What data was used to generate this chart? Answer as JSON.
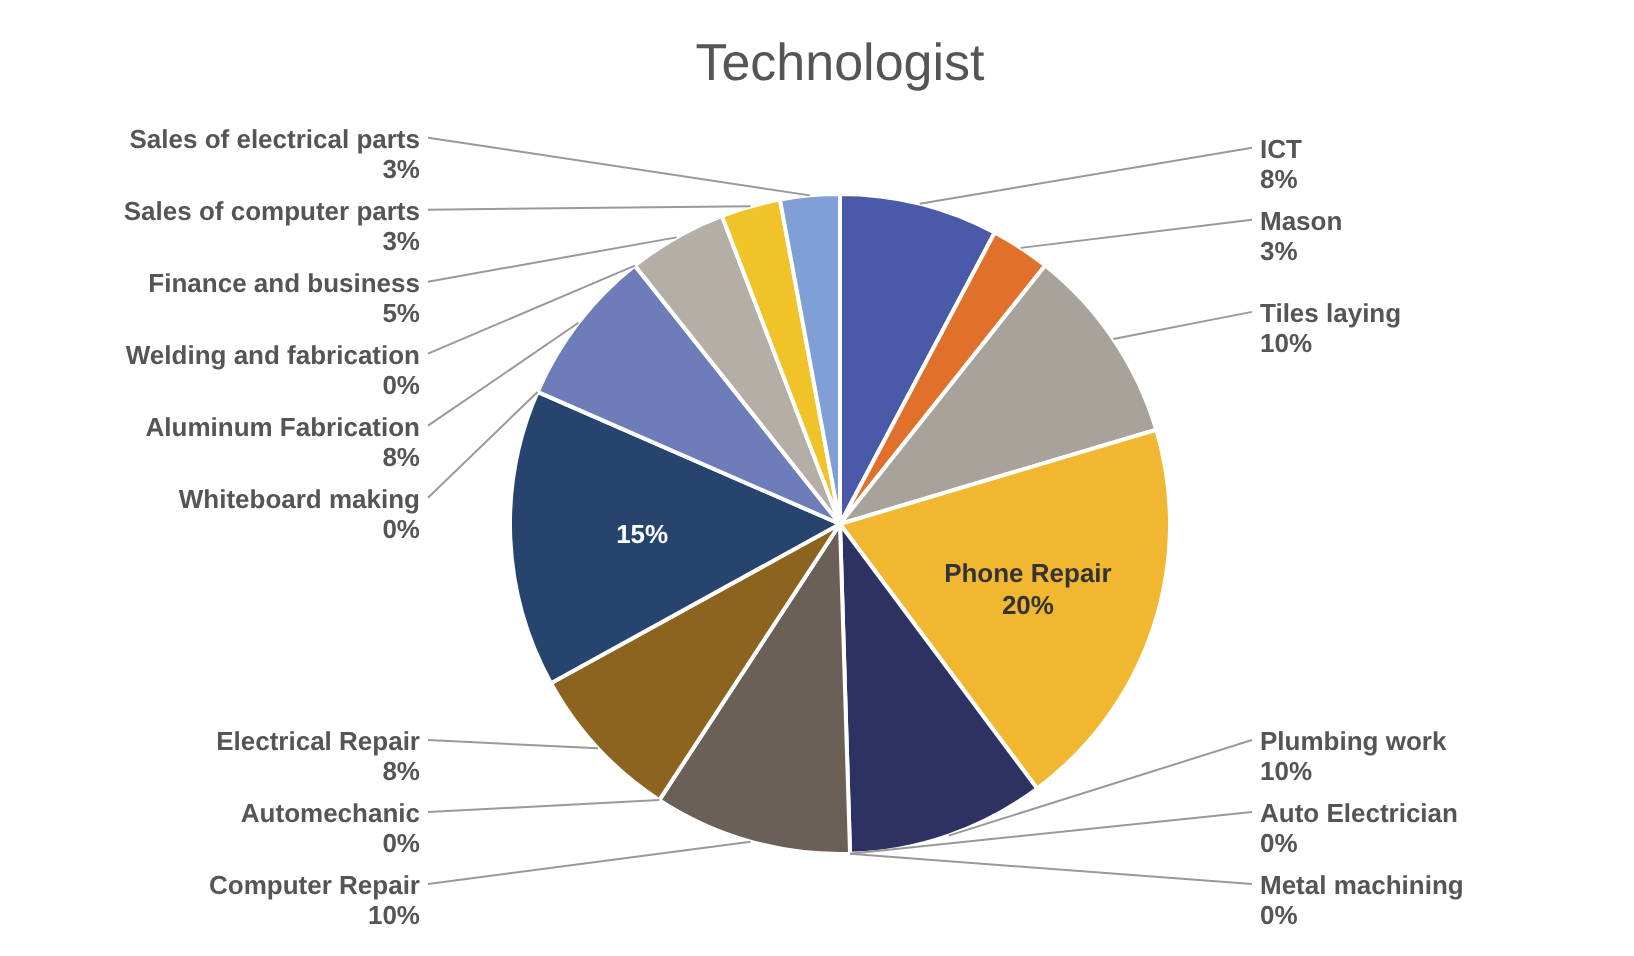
{
  "chart_data": {
    "type": "pie",
    "title": "Technologist",
    "categories": [
      "ICT",
      "Mason",
      "Tiles laying",
      "Phone Repair",
      "Plumbing work",
      "Auto Electrician",
      "Metal machining",
      "Computer Repair",
      "Automechanic",
      "Electrical Repair",
      null,
      "Whiteboard making",
      "Aluminum Fabrication",
      "Welding and fabrication",
      "Finance and business",
      "Sales of computer parts",
      "Sales of electrical parts"
    ],
    "values": [
      8,
      3,
      10,
      20,
      10,
      0,
      0,
      10,
      0,
      8,
      15,
      0,
      8,
      0,
      5,
      3,
      3
    ],
    "value_labels": [
      "8%",
      "3%",
      "10%",
      "20%",
      "10%",
      "0%",
      "0%",
      "10%",
      "0%",
      "8%",
      "15%",
      "0%",
      "8%",
      "0%",
      "5%",
      "3%",
      "3%"
    ],
    "colors": [
      "#4a5aa8",
      "#e0702a",
      "#a8a29b",
      "#f2b731",
      "#2e3262",
      "#3a4f8a",
      "#6a6a9a",
      "#6b6058",
      "#8a7a6a",
      "#8c6420",
      "#26446e",
      "#4a6aa0",
      "#6d7dba",
      "#9a8a7a",
      "#b5aea6",
      "#f0c428",
      "#7f9fd6"
    ]
  }
}
